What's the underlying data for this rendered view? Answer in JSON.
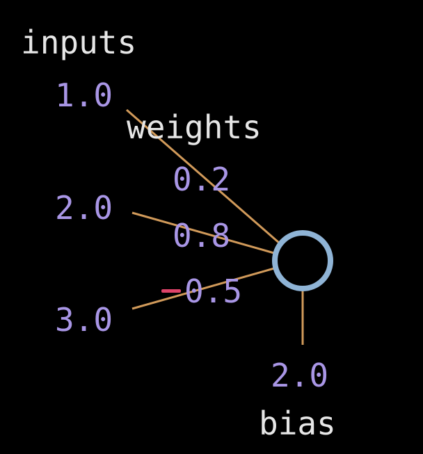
{
  "diagram": {
    "inputs_label": "inputs",
    "weights_label": "weights",
    "bias_label": "bias",
    "inputs": [
      "1.0",
      "2.0",
      "3.0"
    ],
    "weights": [
      "0.2",
      "0.8",
      "0.5"
    ],
    "weight_signs": [
      "",
      "",
      "-"
    ],
    "bias": "2.0",
    "colors": {
      "background": "#000000",
      "label_text": "#e6e6e6",
      "number_text": "#a996e6",
      "connection": "#d19a5a",
      "neuron_stroke": "#8fb4d6",
      "negative_sign": "#e0446a"
    }
  }
}
